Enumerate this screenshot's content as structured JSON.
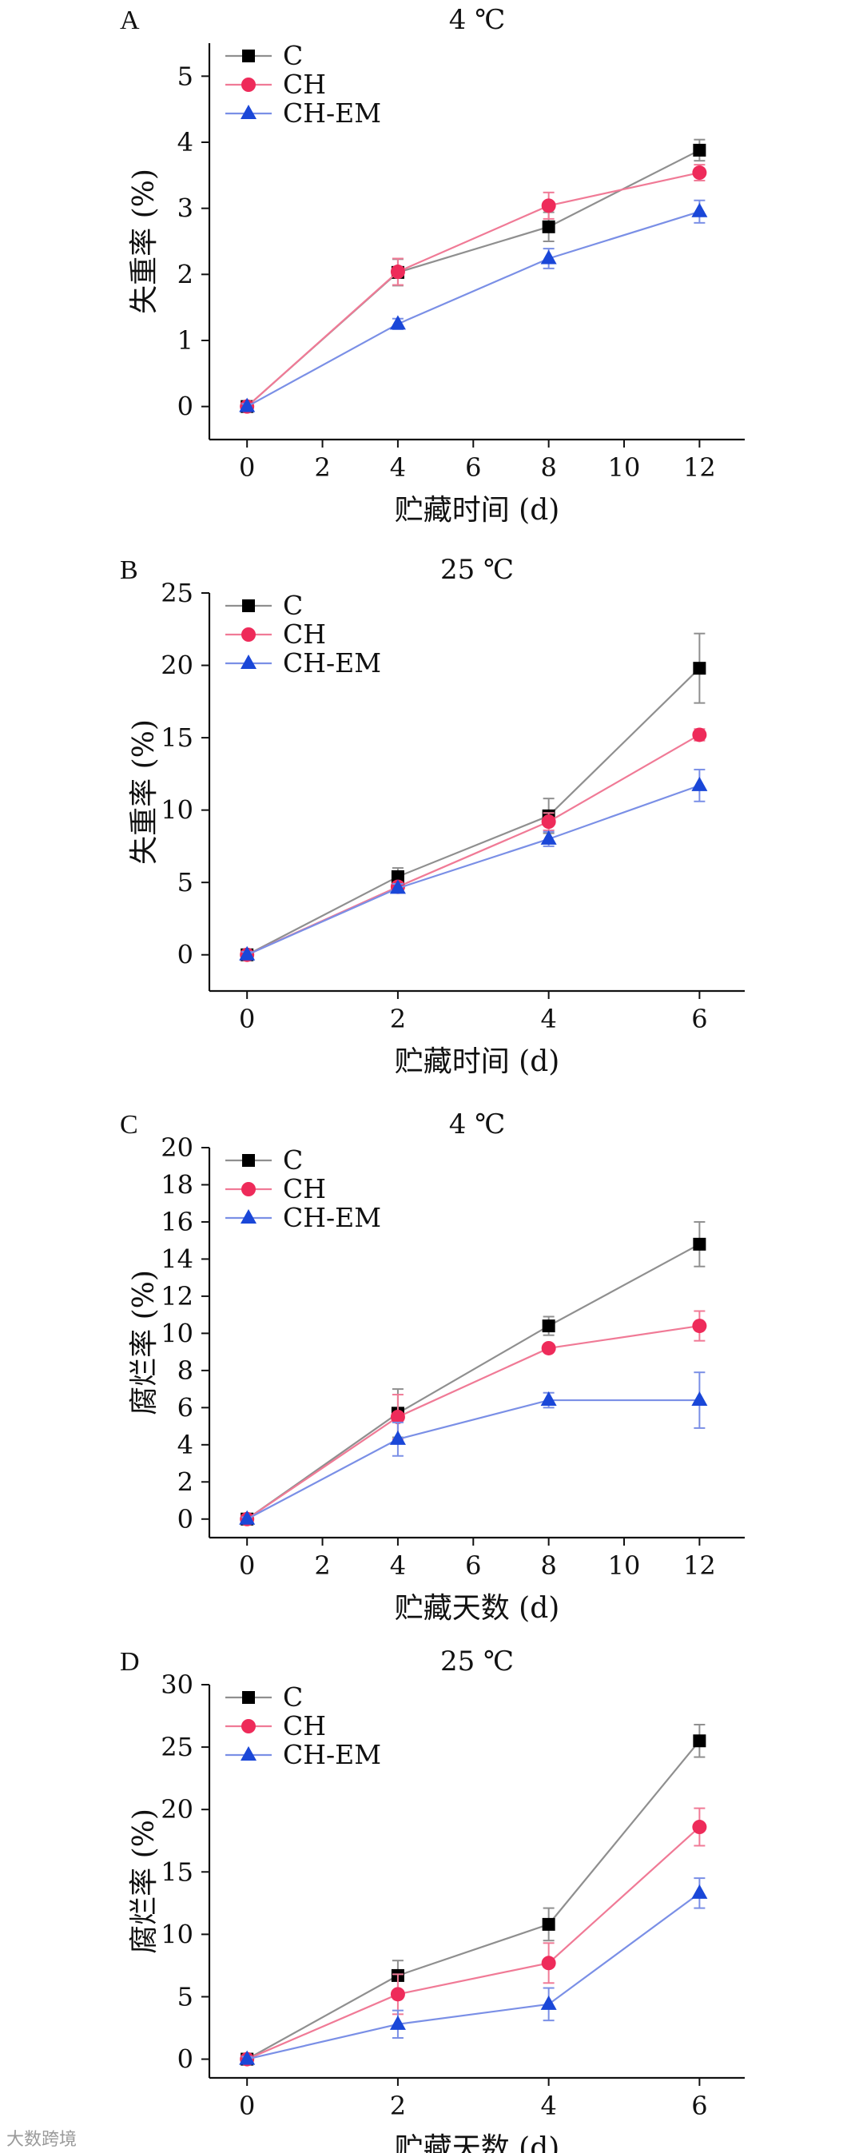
{
  "figure": {
    "watermark": "大数跨境"
  },
  "series_styles": [
    {
      "name": "C",
      "color": "#000000",
      "line": "#8f8f8f",
      "marker": "square"
    },
    {
      "name": "CH",
      "color": "#ee2b5a",
      "line": "#f07a96",
      "marker": "circle"
    },
    {
      "name": "CH-EM",
      "color": "#1a47d8",
      "line": "#7a8fe6",
      "marker": "triangle"
    }
  ],
  "chart_data": [
    {
      "type": "line",
      "panel_label": "A",
      "title": "4 ℃",
      "xlabel": "贮藏时间 (d)",
      "ylabel": "失重率 (%)",
      "xlim": [
        -1,
        13.2
      ],
      "ylim": [
        -0.5,
        5.5
      ],
      "xticks": [
        0,
        2,
        4,
        6,
        8,
        10,
        12
      ],
      "yticks": [
        0,
        1,
        2,
        3,
        4,
        5
      ],
      "legend": "top-left",
      "x": [
        0,
        4,
        8,
        12
      ],
      "series": [
        {
          "name": "C",
          "values": [
            0,
            2.03,
            2.72,
            3.88
          ],
          "errors": [
            0.04,
            0.2,
            0.22,
            0.16
          ]
        },
        {
          "name": "CH",
          "values": [
            0,
            2.04,
            3.04,
            3.54
          ],
          "errors": [
            0.04,
            0.2,
            0.2,
            0.12
          ]
        },
        {
          "name": "CH-EM",
          "values": [
            0,
            1.25,
            2.24,
            2.95
          ],
          "errors": [
            0.04,
            0.08,
            0.15,
            0.17
          ]
        }
      ]
    },
    {
      "type": "line",
      "panel_label": "B",
      "title": "25 ℃",
      "xlabel": "贮藏时间 (d)",
      "ylabel": "失重率 (%)",
      "xlim": [
        -0.5,
        6.6
      ],
      "ylim": [
        -2.5,
        25
      ],
      "xticks": [
        0,
        2,
        4,
        6
      ],
      "yticks": [
        0,
        5,
        10,
        15,
        20,
        25
      ],
      "legend": "top-left",
      "x": [
        0,
        2,
        4,
        6
      ],
      "series": [
        {
          "name": "C",
          "values": [
            0,
            5.4,
            9.6,
            19.8
          ],
          "errors": [
            0.2,
            0.6,
            1.2,
            2.4
          ]
        },
        {
          "name": "CH",
          "values": [
            0,
            4.7,
            9.2,
            15.2
          ],
          "errors": [
            0.2,
            0.3,
            0.6,
            0.4
          ]
        },
        {
          "name": "CH-EM",
          "values": [
            0,
            4.6,
            8.0,
            11.7
          ],
          "errors": [
            0.2,
            0.3,
            0.5,
            1.1
          ]
        }
      ]
    },
    {
      "type": "line",
      "panel_label": "C",
      "title": "4 ℃",
      "xlabel": "贮藏天数 (d)",
      "ylabel": "腐烂率 (%)",
      "xlim": [
        -1,
        13.2
      ],
      "ylim": [
        -1,
        20
      ],
      "xticks": [
        0,
        2,
        4,
        6,
        8,
        10,
        12
      ],
      "yticks": [
        0,
        2,
        4,
        6,
        8,
        10,
        12,
        14,
        16,
        18,
        20
      ],
      "legend": "top-left",
      "x": [
        0,
        4,
        8,
        12
      ],
      "series": [
        {
          "name": "C",
          "values": [
            0,
            5.7,
            10.4,
            14.8
          ],
          "errors": [
            0.1,
            1.3,
            0.5,
            1.2
          ]
        },
        {
          "name": "CH",
          "values": [
            0,
            5.5,
            9.2,
            10.4
          ],
          "errors": [
            0.1,
            1.2,
            0.2,
            0.8
          ]
        },
        {
          "name": "CH-EM",
          "values": [
            0,
            4.3,
            6.4,
            6.4
          ],
          "errors": [
            0.1,
            0.9,
            0.4,
            1.5
          ]
        }
      ]
    },
    {
      "type": "line",
      "panel_label": "D",
      "title": "25 ℃",
      "xlabel": "贮藏天数 (d)",
      "ylabel": "腐烂率 (%)",
      "xlim": [
        -0.5,
        6.6
      ],
      "ylim": [
        -1.5,
        30
      ],
      "xticks": [
        0,
        2,
        4,
        6
      ],
      "yticks": [
        0,
        5,
        10,
        15,
        20,
        25,
        30
      ],
      "legend": "top-left",
      "x": [
        0,
        2,
        4,
        6
      ],
      "series": [
        {
          "name": "C",
          "values": [
            0,
            6.7,
            10.8,
            25.5
          ],
          "errors": [
            0.2,
            1.2,
            1.3,
            1.3
          ]
        },
        {
          "name": "CH",
          "values": [
            0,
            5.2,
            7.7,
            18.6
          ],
          "errors": [
            0.2,
            1.6,
            1.6,
            1.5
          ]
        },
        {
          "name": "CH-EM",
          "values": [
            0,
            2.8,
            4.4,
            13.3
          ],
          "errors": [
            0.2,
            1.1,
            1.3,
            1.2
          ]
        }
      ]
    }
  ]
}
